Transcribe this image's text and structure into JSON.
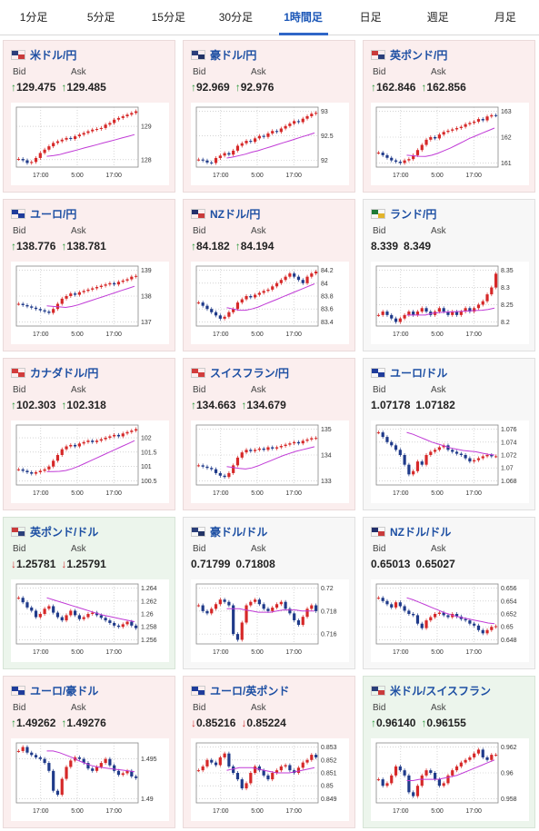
{
  "tabs": [
    {
      "label": "1分足",
      "active": false
    },
    {
      "label": "5分足",
      "active": false
    },
    {
      "label": "15分足",
      "active": false
    },
    {
      "label": "30分足",
      "active": false
    },
    {
      "label": "1時間足",
      "active": true
    },
    {
      "label": "日足",
      "active": false
    },
    {
      "label": "週足",
      "active": false
    },
    {
      "label": "月足",
      "active": false
    }
  ],
  "labels": {
    "bid": "Bid",
    "ask": "Ask"
  },
  "pairs": [
    {
      "name": "米ドル/円",
      "flag": "us",
      "state": "up",
      "bid": "129.475",
      "ask": "129.485",
      "bid_dir": "up",
      "ask_dir": "up",
      "yticks": [
        "129",
        "128"
      ],
      "xticks": [
        "17:00",
        "5:00",
        "17:00"
      ],
      "series": [
        128.02,
        127.98,
        127.9,
        127.93,
        128.05,
        128.2,
        128.3,
        128.4,
        128.5,
        128.55,
        128.6,
        128.65,
        128.62,
        128.7,
        128.75,
        128.8,
        128.85,
        128.9,
        128.92,
        128.95,
        129.05,
        129.1,
        129.2,
        129.25,
        129.3,
        129.35,
        129.4,
        129.45
      ],
      "ma": [
        128.1,
        128.12,
        128.15,
        128.2,
        128.25,
        128.3,
        128.35,
        128.4,
        128.45,
        128.5,
        128.55,
        128.6,
        128.65,
        128.7,
        128.75
      ]
    },
    {
      "name": "豪ドル/円",
      "flag": "au",
      "state": "up",
      "bid": "92.969",
      "ask": "92.976",
      "bid_dir": "up",
      "ask_dir": "up",
      "yticks": [
        "93",
        "92.5",
        "92"
      ],
      "xticks": [
        "17:00",
        "5:00",
        "17:00"
      ],
      "series": [
        92.02,
        92.0,
        91.96,
        91.95,
        92.05,
        92.1,
        92.15,
        92.12,
        92.2,
        92.3,
        92.35,
        92.4,
        92.38,
        92.45,
        92.5,
        92.48,
        92.55,
        92.6,
        92.58,
        92.65,
        92.7,
        92.75,
        92.8,
        92.78,
        92.85,
        92.9,
        92.95,
        92.97
      ],
      "ma": [
        92.05,
        92.07,
        92.1,
        92.13,
        92.17,
        92.2,
        92.24,
        92.28,
        92.32,
        92.36,
        92.4,
        92.44,
        92.48,
        92.52,
        92.56
      ]
    },
    {
      "name": "英ポンド/円",
      "flag": "uk",
      "state": "up",
      "bid": "162.846",
      "ask": "162.856",
      "bid_dir": "up",
      "ask_dir": "up",
      "yticks": [
        "163",
        "162",
        "161"
      ],
      "xticks": [
        "17:00",
        "5:00",
        "17:00"
      ],
      "series": [
        161.4,
        161.3,
        161.2,
        161.1,
        161.05,
        161.0,
        161.1,
        161.15,
        161.3,
        161.5,
        161.7,
        161.9,
        162.0,
        161.95,
        162.1,
        162.2,
        162.25,
        162.3,
        162.35,
        162.4,
        162.5,
        162.55,
        162.6,
        162.7,
        162.65,
        162.8,
        162.85,
        162.84
      ],
      "ma": [
        161.3,
        161.28,
        161.26,
        161.25,
        161.3,
        161.38,
        161.48,
        161.58,
        161.7,
        161.82,
        161.95,
        162.05,
        162.15,
        162.25,
        162.35
      ]
    },
    {
      "name": "ユーロ/円",
      "flag": "eu",
      "state": "up",
      "bid": "138.776",
      "ask": "138.781",
      "bid_dir": "up",
      "ask_dir": "up",
      "yticks": [
        "139",
        "138",
        "137"
      ],
      "xticks": [
        "17:00",
        "5:00",
        "17:00"
      ],
      "series": [
        137.7,
        137.65,
        137.6,
        137.55,
        137.5,
        137.45,
        137.4,
        137.35,
        137.5,
        137.7,
        137.9,
        138.0,
        138.1,
        138.05,
        138.15,
        138.2,
        138.25,
        138.3,
        138.35,
        138.4,
        138.45,
        138.5,
        138.45,
        138.55,
        138.6,
        138.65,
        138.75,
        138.78
      ],
      "ma": [
        137.62,
        137.6,
        137.58,
        137.56,
        137.6,
        137.66,
        137.74,
        137.82,
        137.9,
        137.98,
        138.06,
        138.14,
        138.22,
        138.3,
        138.38
      ]
    },
    {
      "name": "NZドル/円",
      "flag": "nz",
      "state": "up",
      "bid": "84.182",
      "ask": "84.194",
      "bid_dir": "up",
      "ask_dir": "up",
      "yticks": [
        "84.2",
        "84",
        "83.8",
        "83.6",
        "83.4"
      ],
      "xticks": [
        "17:00",
        "5:00",
        "17:00"
      ],
      "series": [
        83.7,
        83.65,
        83.6,
        83.55,
        83.5,
        83.45,
        83.48,
        83.55,
        83.6,
        83.7,
        83.75,
        83.8,
        83.78,
        83.82,
        83.85,
        83.88,
        83.9,
        83.95,
        84.0,
        84.05,
        84.1,
        84.15,
        84.1,
        84.05,
        84.0,
        84.1,
        84.15,
        84.18
      ],
      "ma": [
        83.62,
        83.6,
        83.58,
        83.58,
        83.6,
        83.63,
        83.67,
        83.71,
        83.75,
        83.79,
        83.83,
        83.87,
        83.91,
        83.95,
        83.99
      ]
    },
    {
      "name": "ランド/円",
      "flag": "za",
      "state": "neutral",
      "bid": "8.339",
      "ask": "8.349",
      "bid_dir": "none",
      "ask_dir": "none",
      "yticks": [
        "8.35",
        "8.3",
        "8.25",
        "8.2"
      ],
      "xticks": [
        "17:00",
        "5:00",
        "17:00"
      ],
      "series": [
        8.22,
        8.23,
        8.22,
        8.21,
        8.2,
        8.21,
        8.22,
        8.23,
        8.22,
        8.23,
        8.24,
        8.23,
        8.22,
        8.23,
        8.24,
        8.23,
        8.22,
        8.23,
        8.22,
        8.23,
        8.24,
        8.23,
        8.24,
        8.25,
        8.26,
        8.28,
        8.3,
        8.34
      ],
      "ma": [
        8.22,
        8.22,
        8.22,
        8.22,
        8.225,
        8.227,
        8.228,
        8.229,
        8.23,
        8.231,
        8.232,
        8.233,
        8.234,
        8.236,
        8.24
      ]
    },
    {
      "name": "カナダドル/円",
      "flag": "ca",
      "state": "up",
      "bid": "102.303",
      "ask": "102.318",
      "bid_dir": "up",
      "ask_dir": "up",
      "yticks": [
        "102",
        "101.5",
        "101",
        "100.5"
      ],
      "xticks": [
        "17:00",
        "5:00",
        "17:00"
      ],
      "series": [
        100.9,
        100.85,
        100.8,
        100.75,
        100.8,
        100.85,
        100.9,
        101.0,
        101.2,
        101.4,
        101.6,
        101.7,
        101.75,
        101.7,
        101.8,
        101.85,
        101.9,
        101.85,
        101.9,
        101.95,
        102.0,
        102.05,
        102.1,
        102.05,
        102.15,
        102.2,
        102.25,
        102.3
      ],
      "ma": [
        100.82,
        100.82,
        100.83,
        100.86,
        100.92,
        101.0,
        101.1,
        101.2,
        101.3,
        101.4,
        101.5,
        101.6,
        101.7,
        101.8,
        101.9
      ]
    },
    {
      "name": "スイスフラン/円",
      "flag": "ch",
      "state": "up",
      "bid": "134.663",
      "ask": "134.679",
      "bid_dir": "up",
      "ask_dir": "up",
      "yticks": [
        "135",
        "134",
        "133"
      ],
      "xticks": [
        "17:00",
        "5:00",
        "17:00"
      ],
      "series": [
        133.6,
        133.55,
        133.5,
        133.45,
        133.3,
        133.2,
        133.15,
        133.3,
        133.6,
        133.9,
        134.1,
        134.2,
        134.15,
        134.2,
        134.25,
        134.2,
        134.3,
        134.25,
        134.3,
        134.35,
        134.4,
        134.45,
        134.5,
        134.45,
        134.55,
        134.6,
        134.65,
        134.66
      ],
      "ma": [
        133.55,
        133.52,
        133.48,
        133.46,
        133.5,
        133.58,
        133.68,
        133.78,
        133.88,
        133.98,
        134.06,
        134.14,
        134.2,
        134.26,
        134.32
      ]
    },
    {
      "name": "ユーロ/ドル",
      "flag": "eu",
      "state": "neutral",
      "bid": "1.07178",
      "ask": "1.07182",
      "bid_dir": "none",
      "ask_dir": "none",
      "yticks": [
        "1.076",
        "1.074",
        "1.072",
        "1.07",
        "1.068"
      ],
      "xticks": [
        "17:00",
        "5:00",
        "17:00"
      ],
      "series": [
        1.0755,
        1.0748,
        1.074,
        1.0735,
        1.0728,
        1.072,
        1.0705,
        1.069,
        1.0695,
        1.071,
        1.0705,
        1.072,
        1.0725,
        1.0728,
        1.0732,
        1.0735,
        1.0728,
        1.0725,
        1.0722,
        1.072,
        1.0715,
        1.071,
        1.0712,
        1.0715,
        1.0718,
        1.072,
        1.0718,
        1.0718
      ],
      "ma": [
        1.0755,
        1.0752,
        1.0748,
        1.0744,
        1.074,
        1.0737,
        1.0734,
        1.0731,
        1.0729,
        1.0727,
        1.0726,
        1.0725,
        1.0723,
        1.0721,
        1.072
      ]
    },
    {
      "name": "英ポンド/ドル",
      "flag": "uk",
      "state": "down",
      "bid": "1.25781",
      "ask": "1.25791",
      "bid_dir": "down",
      "ask_dir": "down",
      "yticks": [
        "1.264",
        "1.262",
        "1.26",
        "1.258",
        "1.256"
      ],
      "xticks": [
        "17:00",
        "5:00",
        "17:00"
      ],
      "series": [
        1.2625,
        1.2618,
        1.261,
        1.2605,
        1.2595,
        1.26,
        1.2608,
        1.2612,
        1.2602,
        1.2595,
        1.259,
        1.2598,
        1.2605,
        1.2598,
        1.2592,
        1.2595,
        1.26,
        1.2602,
        1.2598,
        1.2594,
        1.259,
        1.2586,
        1.2582,
        1.258,
        1.2584,
        1.2588,
        1.2582,
        1.2578
      ],
      "ma": [
        1.2625,
        1.2622,
        1.2619,
        1.2616,
        1.2613,
        1.261,
        1.2607,
        1.2604,
        1.2601,
        1.2598,
        1.2596,
        1.2594,
        1.2592,
        1.259,
        1.2588
      ]
    },
    {
      "name": "豪ドル/ドル",
      "flag": "au",
      "state": "neutral",
      "bid": "0.71799",
      "ask": "0.71808",
      "bid_dir": "none",
      "ask_dir": "none",
      "yticks": [
        "0.72",
        "0.718",
        "0.716"
      ],
      "xticks": [
        "17:00",
        "5:00",
        "17:00"
      ],
      "series": [
        0.7185,
        0.718,
        0.7178,
        0.7182,
        0.7186,
        0.719,
        0.7188,
        0.7185,
        0.716,
        0.7155,
        0.717,
        0.7185,
        0.7188,
        0.719,
        0.7186,
        0.7182,
        0.718,
        0.7183,
        0.7186,
        0.7188,
        0.7182,
        0.7178,
        0.7172,
        0.7168,
        0.7175,
        0.7182,
        0.7185,
        0.718
      ],
      "ma": [
        0.7182,
        0.7182,
        0.7182,
        0.7181,
        0.718,
        0.7179,
        0.7179,
        0.7179,
        0.718,
        0.7181,
        0.7181,
        0.7181,
        0.718,
        0.718,
        0.718
      ]
    },
    {
      "name": "NZドル/ドル",
      "flag": "nz",
      "state": "neutral",
      "bid": "0.65013",
      "ask": "0.65027",
      "bid_dir": "none",
      "ask_dir": "none",
      "yticks": [
        "0.656",
        "0.654",
        "0.652",
        "0.65",
        "0.648"
      ],
      "xticks": [
        "17:00",
        "5:00",
        "17:00"
      ],
      "series": [
        0.6545,
        0.654,
        0.6535,
        0.653,
        0.6538,
        0.6532,
        0.6525,
        0.652,
        0.6518,
        0.6505,
        0.6498,
        0.651,
        0.6515,
        0.652,
        0.6522,
        0.6518,
        0.6515,
        0.652,
        0.6516,
        0.6512,
        0.651,
        0.6505,
        0.6502,
        0.6495,
        0.649,
        0.6495,
        0.65,
        0.6501
      ],
      "ma": [
        0.6545,
        0.6542,
        0.6538,
        0.6534,
        0.653,
        0.6526,
        0.6522,
        0.6519,
        0.6516,
        0.6514,
        0.6512,
        0.651,
        0.6508,
        0.6506,
        0.6505
      ]
    },
    {
      "name": "ユーロ/豪ドル",
      "flag": "eu",
      "state": "up",
      "bid": "1.49262",
      "ask": "1.49276",
      "bid_dir": "up",
      "ask_dir": "up",
      "yticks": [
        "1.495",
        "1.49"
      ],
      "xticks": [
        "17:00",
        "5:00",
        "17:00"
      ],
      "series": [
        1.496,
        1.4965,
        1.4958,
        1.4955,
        1.4952,
        1.495,
        1.4945,
        1.4935,
        1.491,
        1.4905,
        1.4925,
        1.494,
        1.4948,
        1.4952,
        1.495,
        1.4945,
        1.4938,
        1.4935,
        1.494,
        1.4945,
        1.495,
        1.4942,
        1.4935,
        1.493,
        1.4932,
        1.4935,
        1.4928,
        1.4926
      ],
      "ma": [
        1.496,
        1.496,
        1.4958,
        1.4955,
        1.4952,
        1.4948,
        1.4945,
        1.4942,
        1.494,
        1.4939,
        1.4938,
        1.4937,
        1.4936,
        1.4935,
        1.4934
      ]
    },
    {
      "name": "ユーロ/英ポンド",
      "flag": "eu",
      "state": "up",
      "bid": "0.85216",
      "ask": "0.85224",
      "bid_dir": "down",
      "ask_dir": "down",
      "yticks": [
        "0.853",
        "0.852",
        "0.851",
        "0.85",
        "0.849"
      ],
      "xticks": [
        "17:00",
        "5:00",
        "17:00"
      ],
      "series": [
        0.8512,
        0.8515,
        0.852,
        0.8518,
        0.8516,
        0.8522,
        0.8525,
        0.8515,
        0.851,
        0.8505,
        0.8498,
        0.8502,
        0.851,
        0.8515,
        0.8512,
        0.8508,
        0.8505,
        0.851,
        0.8512,
        0.8515,
        0.8516,
        0.8512,
        0.851,
        0.8514,
        0.8518,
        0.852,
        0.8524,
        0.8522
      ],
      "ma": [
        0.8512,
        0.8513,
        0.8514,
        0.8514,
        0.8514,
        0.8513,
        0.8512,
        0.8511,
        0.851,
        0.851,
        0.851,
        0.8511,
        0.8512,
        0.8513,
        0.8514
      ]
    },
    {
      "name": "米ドル/スイスフラン",
      "flag": "us",
      "state": "down",
      "bid": "0.96140",
      "ask": "0.96155",
      "bid_dir": "up",
      "ask_dir": "up",
      "yticks": [
        "0.962",
        "0.96",
        "0.958"
      ],
      "xticks": [
        "17:00",
        "5:00",
        "17:00"
      ],
      "series": [
        0.9595,
        0.959,
        0.9592,
        0.9598,
        0.9605,
        0.9602,
        0.9598,
        0.9585,
        0.9582,
        0.959,
        0.9598,
        0.9602,
        0.96,
        0.9595,
        0.959,
        0.9592,
        0.9598,
        0.9602,
        0.9605,
        0.9608,
        0.961,
        0.9612,
        0.9615,
        0.9618,
        0.9612,
        0.961,
        0.9614,
        0.9614
      ],
      "ma": [
        0.9594,
        0.9594,
        0.9595,
        0.9595,
        0.9595,
        0.9595,
        0.9596,
        0.9597,
        0.9598,
        0.96,
        0.9602,
        0.9604,
        0.9606,
        0.9608,
        0.961
      ]
    }
  ]
}
